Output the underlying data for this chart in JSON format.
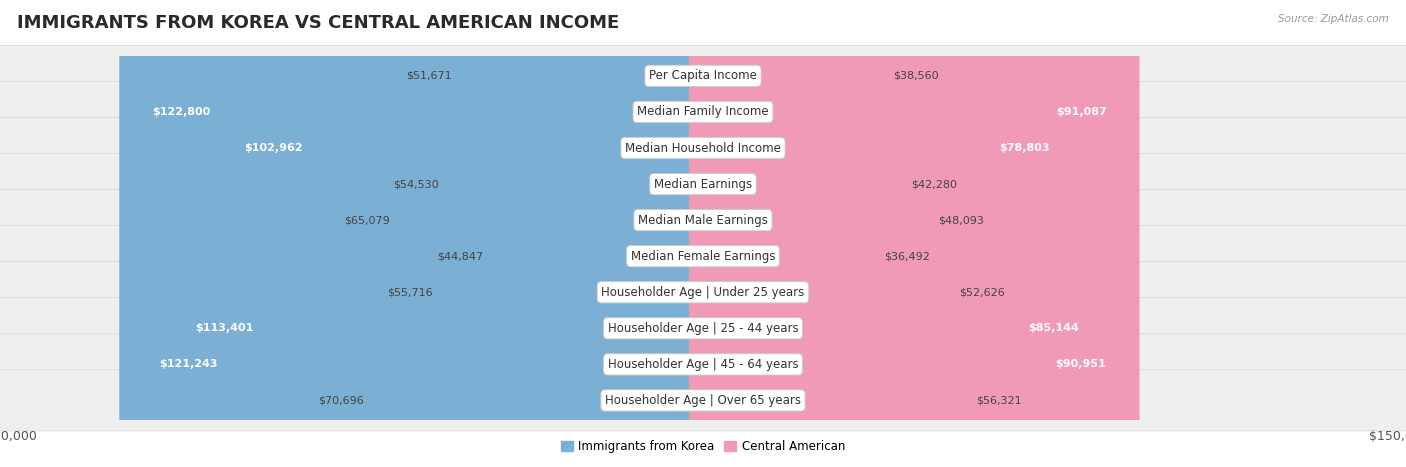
{
  "title": "IMMIGRANTS FROM KOREA VS CENTRAL AMERICAN INCOME",
  "source": "Source: ZipAtlas.com",
  "categories": [
    "Per Capita Income",
    "Median Family Income",
    "Median Household Income",
    "Median Earnings",
    "Median Male Earnings",
    "Median Female Earnings",
    "Householder Age | Under 25 years",
    "Householder Age | 25 - 44 years",
    "Householder Age | 45 - 64 years",
    "Householder Age | Over 65 years"
  ],
  "korea_values": [
    51671,
    122800,
    102962,
    54530,
    65079,
    44847,
    55716,
    113401,
    121243,
    70696
  ],
  "central_values": [
    38560,
    91087,
    78803,
    42280,
    48093,
    36492,
    52626,
    85144,
    90951,
    56321
  ],
  "korea_labels": [
    "$51,671",
    "$122,800",
    "$102,962",
    "$54,530",
    "$65,079",
    "$44,847",
    "$55,716",
    "$113,401",
    "$121,243",
    "$70,696"
  ],
  "central_labels": [
    "$38,560",
    "$91,087",
    "$78,803",
    "$42,280",
    "$48,093",
    "$36,492",
    "$52,626",
    "$85,144",
    "$90,951",
    "$56,321"
  ],
  "korea_color": "#7bafd4",
  "central_color": "#f09ab5",
  "row_bg_color": "#efefef",
  "max_value": 150000,
  "legend_korea": "Immigrants from Korea",
  "legend_central": "Central American",
  "title_fontsize": 13,
  "label_fontsize": 8.5,
  "value_fontsize": 8.0,
  "axis_fontsize": 9,
  "bg_color": "#ffffff",
  "korea_inside_threshold": 90000,
  "central_inside_threshold": 70000
}
